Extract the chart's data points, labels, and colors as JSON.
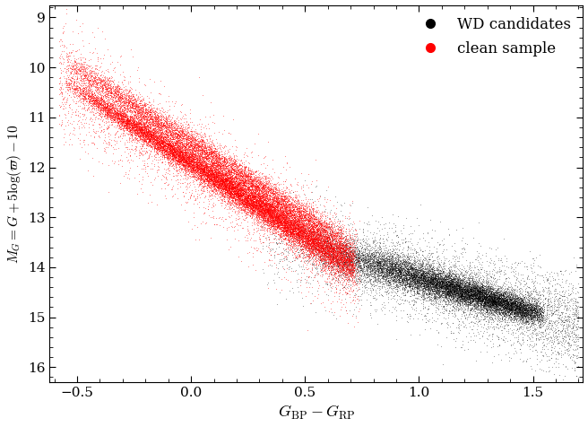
{
  "xlabel": "$G_{\\mathrm{BP}} - G_{\\mathrm{RP}}$",
  "ylabel": "$M_G = G + 5\\log(\\varpi) - 10$",
  "xlim": [
    -0.62,
    1.72
  ],
  "ylim": [
    16.3,
    8.75
  ],
  "xticks": [
    -0.5,
    0.0,
    0.5,
    1.0,
    1.5
  ],
  "yticks": [
    9,
    10,
    11,
    12,
    13,
    14,
    15,
    16
  ],
  "legend_labels": [
    "WD candidates",
    "clean sample"
  ],
  "legend_colors": [
    "#000000",
    "#ff0000"
  ],
  "background_color": "#ffffff",
  "figsize": [
    6.56,
    4.76
  ],
  "dpi": 100,
  "n_wd": 15000,
  "n_clean": 20000,
  "point_size_wd": 0.6,
  "point_size_clean": 0.6,
  "alpha_wd": 0.4,
  "alpha_clean": 0.5
}
